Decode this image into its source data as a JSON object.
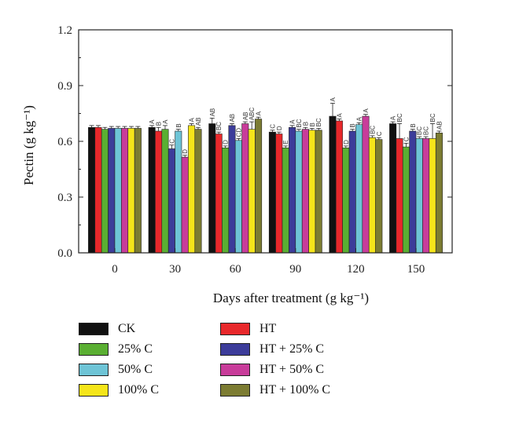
{
  "chart_data": {
    "type": "bar",
    "xlabel": "Days after treatment (g kg⁻¹)",
    "ylabel": "Pectin (g kg⁻¹)",
    "ylim": [
      0,
      1.2
    ],
    "yticks": [
      "0.0",
      "0.3",
      "0.6",
      "0.9",
      "1.2"
    ],
    "categories": [
      "0",
      "30",
      "60",
      "90",
      "120",
      "150"
    ],
    "legend_position": "bottom",
    "series": [
      {
        "name": "CK",
        "color": "#111111",
        "values": [
          0.675,
          0.675,
          0.695,
          0.65,
          0.735,
          0.695
        ],
        "errors": [
          0.01,
          0.01,
          0.03,
          0.01,
          0.07,
          0.01
        ],
        "letters": [
          "",
          "A",
          "AB",
          "C",
          "A",
          "A"
        ]
      },
      {
        "name": "HT",
        "color": "#e8282b",
        "values": [
          0.675,
          0.655,
          0.64,
          0.64,
          0.71,
          0.615
        ],
        "errors": [
          0.01,
          0.02,
          0.01,
          0.01,
          0.01,
          0.08
        ],
        "letters": [
          "",
          "B",
          "BC",
          "D",
          "A",
          "BC"
        ]
      },
      {
        "name": "25% C",
        "color": "#5aaf32",
        "values": [
          0.665,
          0.665,
          0.565,
          0.565,
          0.565,
          0.57
        ],
        "errors": [
          0.01,
          0.02,
          0.01,
          0.01,
          0.01,
          0.02
        ],
        "letters": [
          "",
          "A",
          "D",
          "E",
          "D",
          "C"
        ]
      },
      {
        "name": "HT + 25% C",
        "color": "#3c3c9a",
        "values": [
          0.67,
          0.56,
          0.685,
          0.675,
          0.655,
          0.655
        ],
        "errors": [
          0.01,
          0.02,
          0.01,
          0.01,
          0.01,
          0.01
        ],
        "letters": [
          "",
          "C",
          "AB",
          "A",
          "B",
          "B"
        ]
      },
      {
        "name": "50% C",
        "color": "#6ec4d6",
        "values": [
          0.67,
          0.655,
          0.605,
          0.655,
          0.69,
          0.615
        ],
        "errors": [
          0.01,
          0.01,
          0.01,
          0.01,
          0.01,
          0.01
        ],
        "letters": [
          "",
          "B",
          "CD",
          "BC",
          "A",
          "BC"
        ]
      },
      {
        "name": "HT + 50% C",
        "color": "#c83c9a",
        "values": [
          0.67,
          0.515,
          0.695,
          0.665,
          0.735,
          0.615
        ],
        "errors": [
          0.01,
          0.01,
          0.01,
          0.01,
          0.01,
          0.01
        ],
        "letters": [
          "",
          "D",
          "AB",
          "B",
          "A",
          "BC"
        ]
      },
      {
        "name": "100% C",
        "color": "#f5e51a",
        "values": [
          0.67,
          0.685,
          0.665,
          0.66,
          0.62,
          0.615
        ],
        "errors": [
          0.01,
          0.01,
          0.04,
          0.01,
          0.01,
          0.08
        ],
        "letters": [
          "",
          "A",
          "ABC",
          "B",
          "BC",
          "BC"
        ]
      },
      {
        "name": "HT + 100% C",
        "color": "#7c7c32",
        "values": [
          0.67,
          0.665,
          0.72,
          0.66,
          0.61,
          0.645
        ],
        "errors": [
          0.01,
          0.01,
          0.01,
          0.01,
          0.01,
          0.01
        ],
        "letters": [
          "",
          "AB",
          "A",
          "BC",
          "C",
          "AB"
        ]
      }
    ]
  }
}
